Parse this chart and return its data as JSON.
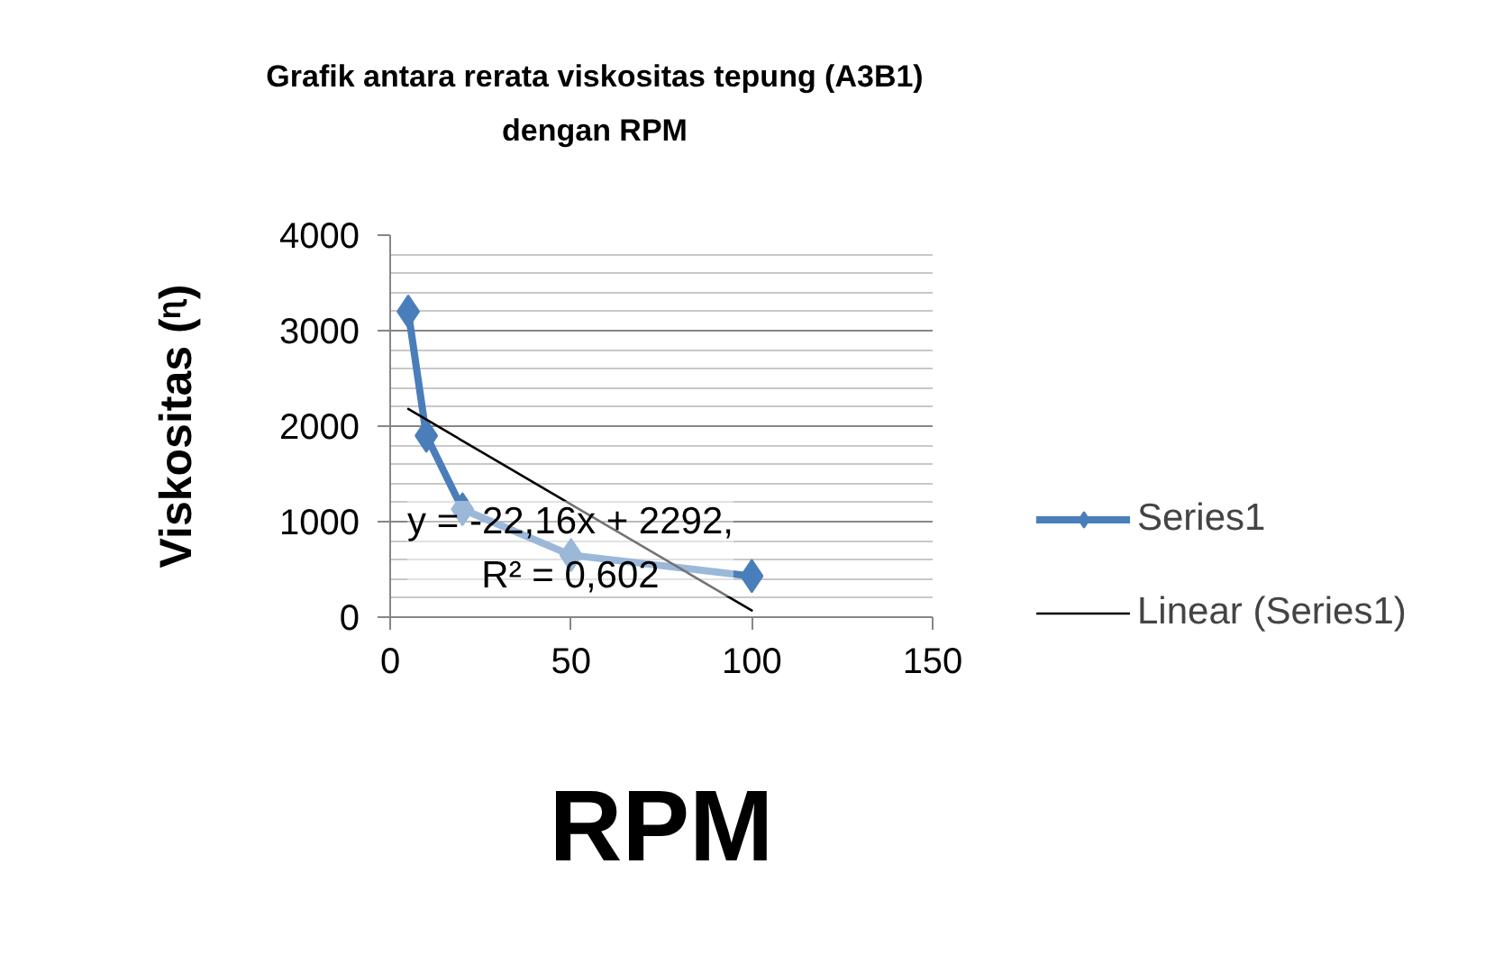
{
  "chart_data": {
    "type": "line",
    "title": "Grafik antara rerata viskositas tepung (A3B1) dengan RPM",
    "xlabel": "RPM",
    "ylabel": "Viskositas (ᶯ)",
    "x": [
      5,
      10,
      20,
      50,
      100
    ],
    "series": [
      {
        "name": "Series1",
        "color": "#4a7ebb",
        "values": [
          3200,
          1900,
          1130,
          650,
          430
        ],
        "marker": "diamond"
      },
      {
        "name": "Linear (Series1)",
        "type": "line",
        "color": "#000000",
        "x": [
          5,
          100
        ],
        "values": [
          2180,
          70
        ],
        "marker": "none"
      }
    ],
    "xlim": [
      0,
      150
    ],
    "xticks": [
      0,
      50,
      100,
      150
    ],
    "ylim": [
      0,
      4000
    ],
    "yticks": [
      0,
      1000,
      2000,
      3000,
      4000
    ],
    "grid": "y",
    "legend": "right",
    "line_style": "solid",
    "annotations": [
      "y = -22,16x + 2292, R² = 0,602"
    ]
  }
}
